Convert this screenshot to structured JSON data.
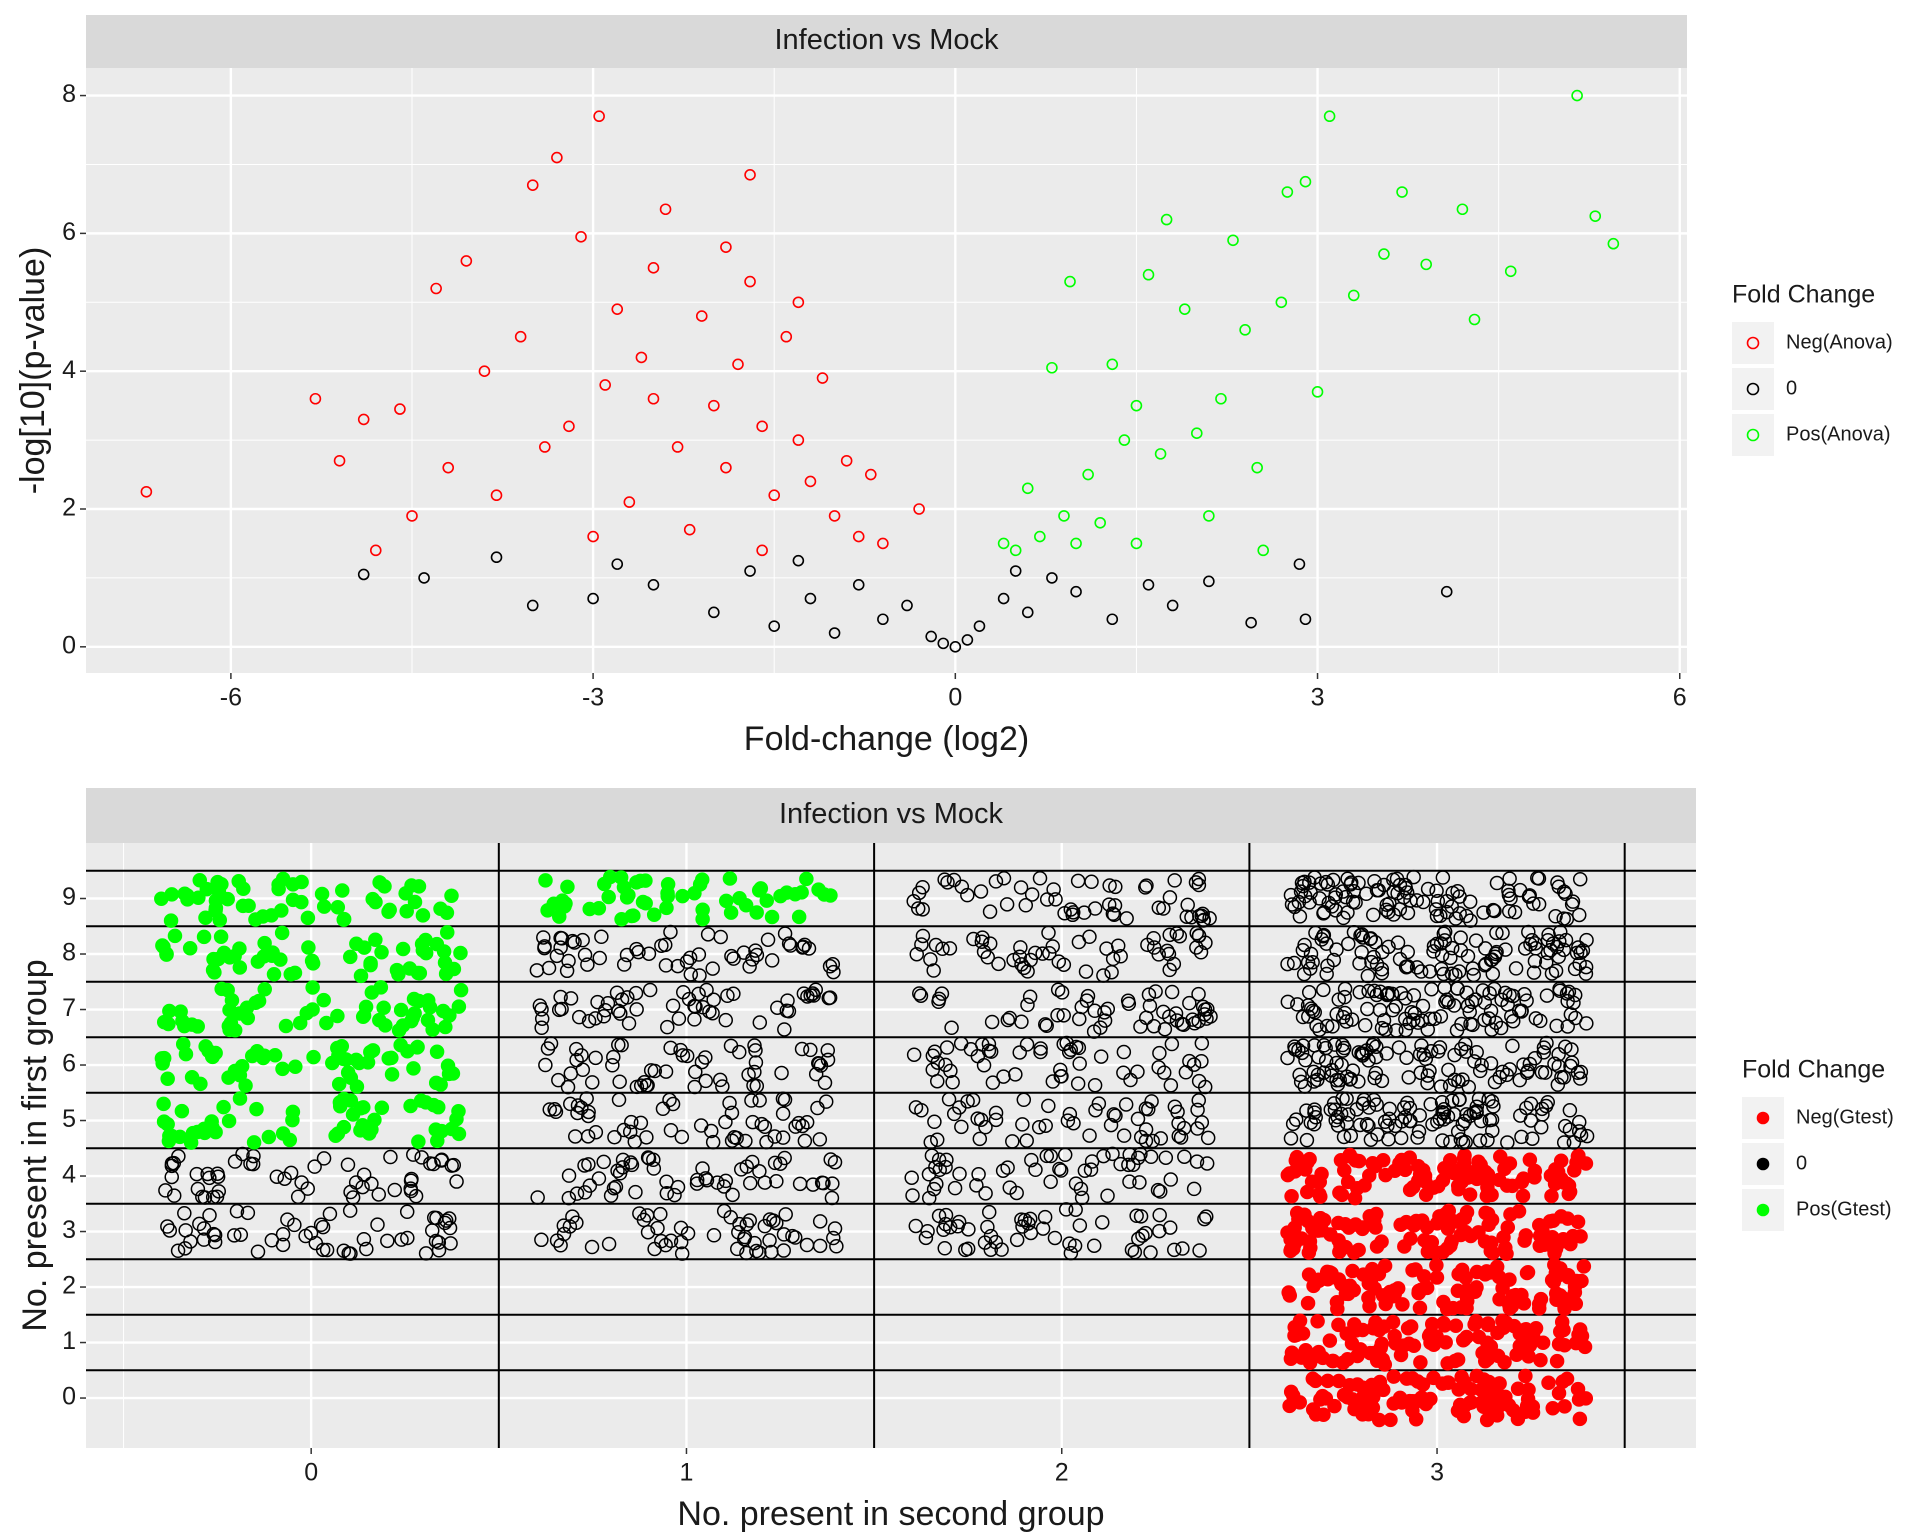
{
  "chart_data": [
    {
      "type": "scatter",
      "title": "Infection vs Mock",
      "x_label": "Fold-change (log2)",
      "y_label": "-log[10](p-value)",
      "legend_title": "Fold Change",
      "marker": "hollow",
      "grid": true,
      "xlim": [
        -7.2,
        6.06
      ],
      "xticks": [
        -6,
        -3,
        0,
        3,
        6
      ],
      "ylim": [
        -0.38,
        8.4
      ],
      "yticks": [
        0,
        2,
        4,
        6,
        8
      ],
      "series": [
        {
          "name": "Neg(Anova)",
          "color": "#ff0000",
          "x": [
            -6.7,
            -5.3,
            -4.9,
            -5.1,
            -4.8,
            -4.6,
            -4.3,
            -4.05,
            -3.9,
            -3.3,
            -2.95,
            -3.5,
            -1.7,
            -2.4,
            -3.1,
            -3.6,
            -3.2,
            -2.8,
            -2.6,
            -2.5,
            -2.3,
            -2.1,
            -2.0,
            -1.9,
            -1.8,
            -1.7,
            -1.6,
            -1.5,
            -1.4,
            -1.3,
            -1.2,
            -1.1,
            -1.0,
            -0.9,
            -0.8,
            -0.7,
            -0.6,
            -0.3,
            -2.7,
            -3.0,
            -3.8,
            -4.2,
            -2.2,
            -1.6,
            -2.5,
            -1.9,
            -1.3,
            -2.9,
            -3.4,
            -4.5
          ],
          "values": [
            2.25,
            3.6,
            3.3,
            2.7,
            1.4,
            3.45,
            5.2,
            5.6,
            4.0,
            7.1,
            7.7,
            6.7,
            6.85,
            6.35,
            5.95,
            4.5,
            3.2,
            4.9,
            4.2,
            3.6,
            2.9,
            4.8,
            3.5,
            2.6,
            4.1,
            5.3,
            3.2,
            2.2,
            4.5,
            3.0,
            2.4,
            3.9,
            1.9,
            2.7,
            1.6,
            2.5,
            1.5,
            2.0,
            2.1,
            1.6,
            2.2,
            2.6,
            1.7,
            1.4,
            5.5,
            5.8,
            5.0,
            3.8,
            2.9,
            1.9
          ]
        },
        {
          "name": "0",
          "color": "#000000",
          "x": [
            -4.9,
            -4.4,
            -3.5,
            -3.0,
            -2.5,
            -2.0,
            -1.7,
            -1.5,
            -1.2,
            -1.0,
            -0.8,
            -0.6,
            -0.4,
            -0.2,
            -0.1,
            0,
            0.1,
            0.2,
            0.4,
            0.6,
            0.8,
            1.0,
            1.3,
            1.6,
            2.1,
            2.45,
            2.85,
            2.9,
            4.07,
            -2.8,
            -1.3,
            0.5,
            1.8,
            -3.8
          ],
          "values": [
            1.05,
            1.0,
            0.6,
            0.7,
            0.9,
            0.5,
            1.1,
            0.3,
            0.7,
            0.2,
            0.9,
            0.4,
            0.6,
            0.15,
            0.05,
            0.0,
            0.1,
            0.3,
            0.7,
            0.5,
            1.0,
            0.8,
            0.4,
            0.9,
            0.95,
            0.35,
            1.2,
            0.4,
            0.8,
            1.2,
            1.25,
            1.1,
            0.6,
            1.3
          ]
        },
        {
          "name": "Pos(Anova)",
          "color": "#00ff00",
          "x": [
            5.15,
            3.1,
            5.3,
            5.45,
            4.6,
            4.2,
            3.7,
            2.9,
            2.75,
            3.9,
            4.3,
            3.55,
            3.0,
            2.5,
            2.1,
            1.75,
            0.95,
            0.8,
            1.3,
            1.5,
            1.7,
            1.9,
            2.3,
            1.1,
            0.9,
            0.7,
            0.5,
            1.2,
            1.5,
            2.0,
            2.4,
            2.7,
            1.6,
            3.3,
            0.6,
            1.4,
            1.0,
            0.4,
            2.55,
            2.2
          ],
          "values": [
            8.0,
            7.7,
            6.25,
            5.85,
            5.45,
            6.35,
            6.6,
            6.75,
            6.6,
            5.55,
            4.75,
            5.7,
            3.7,
            2.6,
            1.9,
            6.2,
            5.3,
            4.05,
            4.1,
            3.5,
            2.8,
            4.9,
            5.9,
            2.5,
            1.9,
            1.6,
            1.4,
            1.8,
            1.5,
            3.1,
            4.6,
            5.0,
            5.4,
            5.1,
            2.3,
            3.0,
            1.5,
            1.5,
            1.4,
            3.6
          ]
        }
      ]
    },
    {
      "type": "scatter",
      "jitter": true,
      "title": "Infection vs Mock",
      "x_label": "No. present in second group",
      "y_label": "No. present in first group",
      "legend_title": "Fold Change",
      "marker": "filled",
      "grid": true,
      "xlim": [
        -0.6,
        3.69
      ],
      "xticks": [
        0,
        1,
        2,
        3
      ],
      "ylim": [
        -0.9,
        10.0
      ],
      "yticks": [
        0,
        1,
        2,
        3,
        4,
        5,
        6,
        7,
        8,
        9
      ],
      "series": [
        {
          "name": "Neg(Gtest)",
          "color": "#ff0000",
          "x": [
            3,
            3,
            3,
            3,
            3
          ],
          "values": [
            0,
            1,
            2,
            3,
            4
          ]
        },
        {
          "name": "0",
          "color": "#000000",
          "x": [
            0,
            0,
            1,
            1,
            1,
            1,
            1,
            1,
            2,
            2,
            2,
            2,
            2,
            2,
            2,
            3,
            3,
            3,
            3,
            3
          ],
          "values": [
            3,
            4,
            3,
            4,
            5,
            6,
            7,
            8,
            3,
            4,
            5,
            6,
            7,
            8,
            9,
            5,
            6,
            7,
            8,
            9
          ]
        },
        {
          "name": "Pos(Gtest)",
          "color": "#00ff00",
          "x": [
            0,
            0,
            0,
            0,
            0,
            1
          ],
          "values": [
            5,
            6,
            7,
            8,
            9,
            9
          ]
        }
      ]
    }
  ]
}
